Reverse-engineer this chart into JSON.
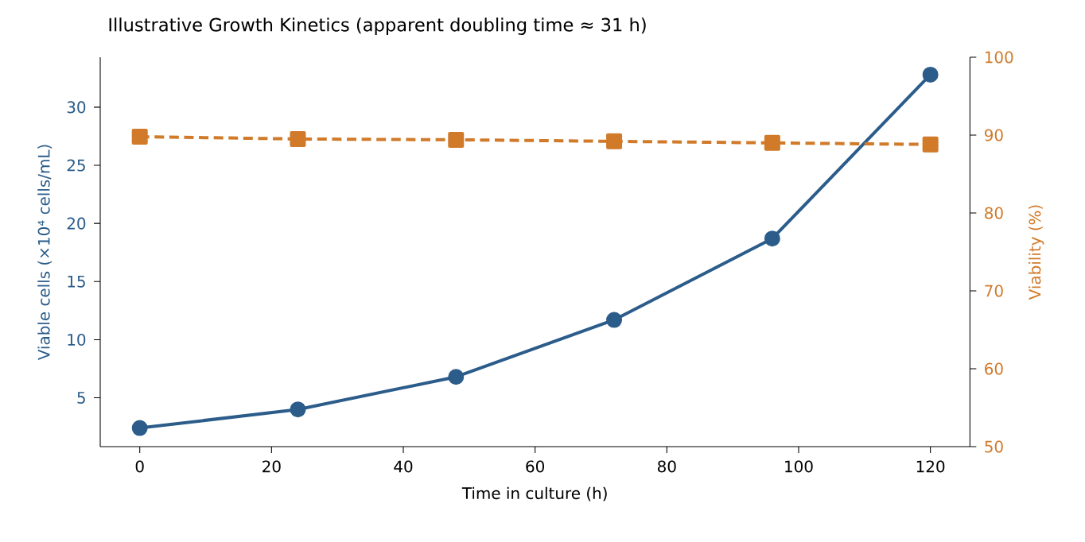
{
  "chart_data": {
    "type": "line",
    "title": "Illustrative Growth Kinetics (apparent doubling time ≈ 31 h)",
    "xlabel": "Time in culture (h)",
    "ylabel": "Viable cells (×10⁴ cells/mL)",
    "y2label": "Viability (%)",
    "x": [
      0,
      24,
      48,
      72,
      96,
      120
    ],
    "series": [
      {
        "color": "#2b5c8a",
        "values": [
          2.4,
          4.0,
          6.8,
          11.7,
          18.7,
          32.8
        ],
        "marker": "circle",
        "line_style": "solid"
      },
      {
        "color": "#d07a2a",
        "values": [
          89.8,
          89.5,
          89.4,
          89.2,
          89.0,
          88.8
        ],
        "marker": "square",
        "line_style": "dashed",
        "axis": "y2"
      }
    ],
    "xlim": [
      -6,
      126
    ],
    "xticks": [
      0,
      20,
      40,
      60,
      80,
      100,
      120
    ],
    "ylim": [
      0.8,
      34.3
    ],
    "yticks": [
      5,
      10,
      15,
      20,
      25,
      30
    ],
    "y2lim": [
      50,
      100
    ],
    "y2ticks": [
      50,
      60,
      70,
      80,
      90,
      100
    ]
  }
}
